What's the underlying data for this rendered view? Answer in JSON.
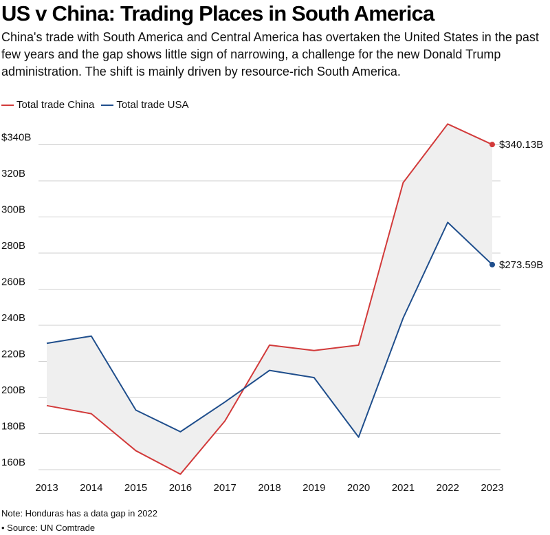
{
  "title": "US v China: Trading Places in South America",
  "subtitle": "China's trade with South America and Central America has overtaken the United States in the past few years and the gap shows little sign of narrowing, a challenge for the new Donald Trump administration. The shift is mainly driven by resource-rich South America.",
  "note": "Note: Honduras has a data gap in 2022",
  "source": "• Source: UN Comtrade",
  "colors": {
    "china": "#d23a3a",
    "usa": "#1f4e8c",
    "gap": "#efefef",
    "grid": "#cfcfcf"
  },
  "chart_data": {
    "type": "line",
    "title": "",
    "xlabel": "",
    "ylabel": "",
    "x": [
      "2013",
      "2014",
      "2015",
      "2016",
      "2017",
      "2018",
      "2019",
      "2020",
      "2021",
      "2022",
      "2023"
    ],
    "ylim": [
      160,
      350
    ],
    "yticks": [
      160,
      180,
      200,
      220,
      240,
      260,
      280,
      300,
      320,
      340
    ],
    "ytick_labels": [
      "160B",
      "180B",
      "200B",
      "220B",
      "240B",
      "260B",
      "280B",
      "300B",
      "320B",
      "$340B"
    ],
    "legend": "top-left",
    "series": [
      {
        "name": "Total trade China",
        "color": "#d23a3a",
        "values": [
          195.5,
          191,
          170.5,
          157.5,
          187,
          229,
          226,
          229,
          319,
          351.5,
          340.13
        ],
        "end_label": "$340.13B"
      },
      {
        "name": "Total trade USA",
        "color": "#1f4e8c",
        "values": [
          230,
          234,
          193,
          181,
          197.5,
          215,
          211,
          178,
          244,
          297,
          273.59
        ],
        "end_label": "$273.59B"
      }
    ]
  }
}
